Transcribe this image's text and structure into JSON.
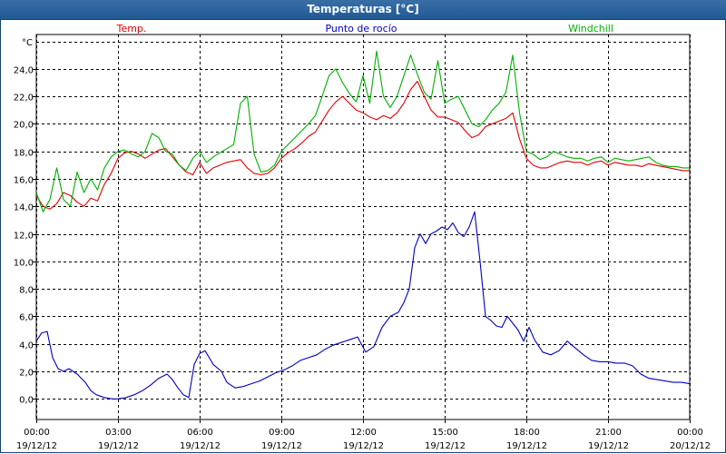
{
  "window": {
    "title": "Temperaturas [°C]"
  },
  "colors": {
    "temp": "#e00000",
    "dew": "#0000c0",
    "windchill": "#00b000"
  },
  "chart_data": {
    "type": "line",
    "title": "Temperaturas [°C]",
    "ylabel": "°C",
    "ylim": [
      -1.5,
      26.5
    ],
    "yticks": [
      0,
      2,
      4,
      6,
      8,
      10,
      12,
      14,
      16,
      18,
      20,
      22,
      24
    ],
    "ytick_labels": [
      "0,0",
      "2,0",
      "4,0",
      "6,0",
      "8,0",
      "10,0",
      "12,0",
      "14,0",
      "16,0",
      "18,0",
      "20,0",
      "22,0",
      "24,0"
    ],
    "xlim": [
      0,
      24
    ],
    "xticks": [
      0,
      3,
      6,
      9,
      12,
      15,
      18,
      21,
      24
    ],
    "xtick_labels": [
      [
        "00:00",
        "19/12/12"
      ],
      [
        "03:00",
        "19/12/12"
      ],
      [
        "06:00",
        "19/12/12"
      ],
      [
        "09:00",
        "19/12/12"
      ],
      [
        "12:00",
        "19/12/12"
      ],
      [
        "15:00",
        "19/12/12"
      ],
      [
        "18:00",
        "19/12/12"
      ],
      [
        "21:00",
        "19/12/12"
      ],
      [
        "00:00",
        "20/12/12"
      ]
    ],
    "grid": true,
    "legend_position": "top",
    "series": [
      {
        "name": "Temp.",
        "color_key": "temp",
        "x": [
          0,
          0.25,
          0.5,
          0.75,
          1.0,
          1.25,
          1.5,
          1.75,
          2.0,
          2.25,
          2.5,
          2.75,
          3.0,
          3.25,
          3.5,
          3.75,
          4.0,
          4.25,
          4.5,
          4.75,
          5.0,
          5.25,
          5.5,
          5.75,
          6.0,
          6.25,
          6.5,
          6.75,
          7.0,
          7.25,
          7.5,
          7.75,
          8.0,
          8.25,
          8.5,
          8.75,
          9.0,
          9.25,
          9.5,
          9.75,
          10.0,
          10.25,
          10.5,
          10.75,
          11.0,
          11.25,
          11.5,
          11.75,
          12.0,
          12.25,
          12.5,
          12.75,
          13.0,
          13.25,
          13.5,
          13.75,
          14.0,
          14.25,
          14.5,
          14.75,
          15.0,
          15.25,
          15.5,
          15.75,
          16.0,
          16.25,
          16.5,
          16.75,
          17.0,
          17.25,
          17.5,
          17.75,
          18.0,
          18.25,
          18.5,
          18.75,
          19.0,
          19.25,
          19.5,
          19.75,
          20.0,
          20.25,
          20.5,
          20.75,
          21.0,
          21.25,
          21.5,
          21.75,
          22.0,
          22.25,
          22.5,
          22.75,
          23.0,
          23.25,
          23.5,
          23.75,
          24.0
        ],
        "values": [
          14.8,
          14.0,
          13.8,
          14.2,
          15.0,
          14.8,
          14.3,
          14.0,
          14.6,
          14.4,
          15.6,
          16.4,
          17.5,
          17.9,
          18.0,
          17.8,
          17.5,
          17.8,
          18.1,
          18.2,
          17.6,
          17.0,
          16.5,
          16.3,
          17.2,
          16.4,
          16.8,
          17.0,
          17.2,
          17.3,
          17.4,
          16.8,
          16.4,
          16.3,
          16.4,
          16.8,
          17.5,
          17.9,
          18.2,
          18.6,
          19.1,
          19.4,
          20.2,
          21.0,
          21.6,
          22.0,
          21.5,
          21.0,
          20.8,
          20.5,
          20.3,
          20.6,
          20.4,
          20.8,
          21.5,
          22.5,
          23.1,
          22.0,
          21.0,
          20.5,
          20.5,
          20.3,
          20.1,
          19.5,
          19.0,
          19.2,
          19.8,
          20.0,
          20.2,
          20.4,
          20.8,
          18.9,
          17.5,
          17.0,
          16.8,
          16.8,
          17.0,
          17.2,
          17.3,
          17.2,
          17.2,
          17.0,
          17.2,
          17.3,
          17.0,
          17.2,
          17.1,
          17.0,
          17.0,
          16.9,
          17.1,
          17.0,
          16.9,
          16.8,
          16.7,
          16.6,
          16.6
        ]
      },
      {
        "name": "Punto de rocío",
        "color_key": "dew",
        "x": [
          0,
          0.2,
          0.4,
          0.6,
          0.8,
          1.0,
          1.2,
          1.5,
          1.8,
          2.0,
          2.2,
          2.5,
          2.8,
          3.0,
          3.3,
          3.6,
          3.9,
          4.2,
          4.5,
          4.8,
          5.0,
          5.2,
          5.4,
          5.6,
          5.8,
          6.0,
          6.2,
          6.5,
          6.8,
          7.0,
          7.3,
          7.6,
          7.9,
          8.2,
          8.5,
          8.8,
          9.1,
          9.4,
          9.7,
          10.0,
          10.3,
          10.6,
          10.9,
          11.2,
          11.5,
          11.8,
          12.1,
          12.4,
          12.7,
          13.0,
          13.3,
          13.5,
          13.7,
          13.9,
          14.1,
          14.3,
          14.5,
          14.7,
          14.9,
          15.1,
          15.3,
          15.5,
          15.7,
          15.9,
          16.1,
          16.3,
          16.5,
          16.7,
          16.9,
          17.1,
          17.3,
          17.5,
          17.7,
          17.9,
          18.1,
          18.3,
          18.6,
          18.9,
          19.2,
          19.5,
          19.8,
          20.1,
          20.4,
          20.7,
          21.0,
          21.3,
          21.6,
          21.9,
          22.2,
          22.5,
          22.8,
          23.1,
          23.4,
          23.7,
          24.0
        ],
        "values": [
          4.2,
          4.8,
          4.9,
          3.0,
          2.2,
          2.0,
          2.2,
          1.8,
          1.2,
          0.6,
          0.3,
          0.1,
          0.0,
          0.0,
          0.1,
          0.3,
          0.6,
          1.0,
          1.5,
          1.8,
          1.4,
          0.8,
          0.3,
          0.1,
          2.5,
          3.3,
          3.5,
          2.5,
          2.0,
          1.2,
          0.8,
          0.9,
          1.1,
          1.3,
          1.6,
          1.9,
          2.1,
          2.4,
          2.8,
          3.0,
          3.2,
          3.6,
          3.9,
          4.1,
          4.3,
          4.5,
          3.4,
          3.8,
          5.2,
          6.0,
          6.3,
          7.0,
          8.0,
          11.0,
          12.0,
          11.3,
          12.0,
          12.2,
          12.5,
          12.3,
          12.8,
          12.1,
          11.8,
          12.5,
          13.6,
          10.0,
          6.0,
          5.7,
          5.3,
          5.2,
          6.0,
          5.5,
          5.0,
          4.2,
          5.2,
          4.3,
          3.4,
          3.2,
          3.5,
          4.2,
          3.7,
          3.2,
          2.8,
          2.7,
          2.7,
          2.6,
          2.6,
          2.4,
          1.8,
          1.5,
          1.4,
          1.3,
          1.2,
          1.2,
          1.1
        ]
      },
      {
        "name": "Windchill",
        "color_key": "windchill",
        "x": [
          0,
          0.25,
          0.5,
          0.75,
          1.0,
          1.25,
          1.5,
          1.75,
          2.0,
          2.25,
          2.5,
          2.75,
          3.0,
          3.25,
          3.5,
          3.75,
          4.0,
          4.25,
          4.5,
          4.75,
          5.0,
          5.25,
          5.5,
          5.75,
          6.0,
          6.25,
          6.5,
          6.75,
          7.0,
          7.25,
          7.5,
          7.75,
          8.0,
          8.25,
          8.5,
          8.75,
          9.0,
          9.25,
          9.5,
          9.75,
          10.0,
          10.25,
          10.5,
          10.75,
          11.0,
          11.25,
          11.5,
          11.75,
          12.0,
          12.25,
          12.5,
          12.75,
          13.0,
          13.25,
          13.5,
          13.75,
          14.0,
          14.25,
          14.5,
          14.75,
          15.0,
          15.25,
          15.5,
          15.75,
          16.0,
          16.25,
          16.5,
          16.75,
          17.0,
          17.25,
          17.5,
          17.75,
          18.0,
          18.25,
          18.5,
          18.75,
          19.0,
          19.25,
          19.5,
          19.75,
          20.0,
          20.25,
          20.5,
          20.75,
          21.0,
          21.25,
          21.5,
          21.75,
          22.0,
          22.25,
          22.5,
          22.75,
          23.0,
          23.25,
          23.5,
          23.75,
          24.0
        ],
        "values": [
          15.0,
          13.6,
          14.5,
          16.8,
          14.5,
          14.0,
          16.5,
          15.0,
          16.0,
          15.2,
          16.8,
          17.6,
          18.0,
          18.1,
          17.8,
          17.6,
          18.0,
          19.3,
          19.0,
          18.0,
          17.8,
          17.0,
          16.6,
          17.5,
          18.0,
          17.2,
          17.6,
          17.9,
          18.2,
          18.5,
          21.5,
          22.0,
          17.8,
          16.5,
          16.6,
          17.0,
          18.0,
          18.5,
          19.0,
          19.5,
          20.0,
          20.6,
          22.0,
          23.5,
          24.0,
          23.0,
          22.2,
          21.6,
          23.5,
          21.5,
          25.3,
          22.0,
          21.2,
          22.0,
          23.5,
          25.0,
          23.6,
          22.3,
          21.8,
          24.6,
          21.5,
          21.8,
          22.0,
          21.0,
          20.0,
          19.8,
          20.3,
          21.0,
          21.5,
          22.3,
          25.0,
          20.8,
          18.0,
          17.8,
          17.4,
          17.6,
          18.0,
          17.8,
          17.6,
          17.5,
          17.5,
          17.3,
          17.5,
          17.6,
          17.2,
          17.5,
          17.4,
          17.3,
          17.4,
          17.5,
          17.6,
          17.2,
          17.0,
          16.9,
          16.9,
          16.8,
          16.8
        ]
      }
    ]
  }
}
